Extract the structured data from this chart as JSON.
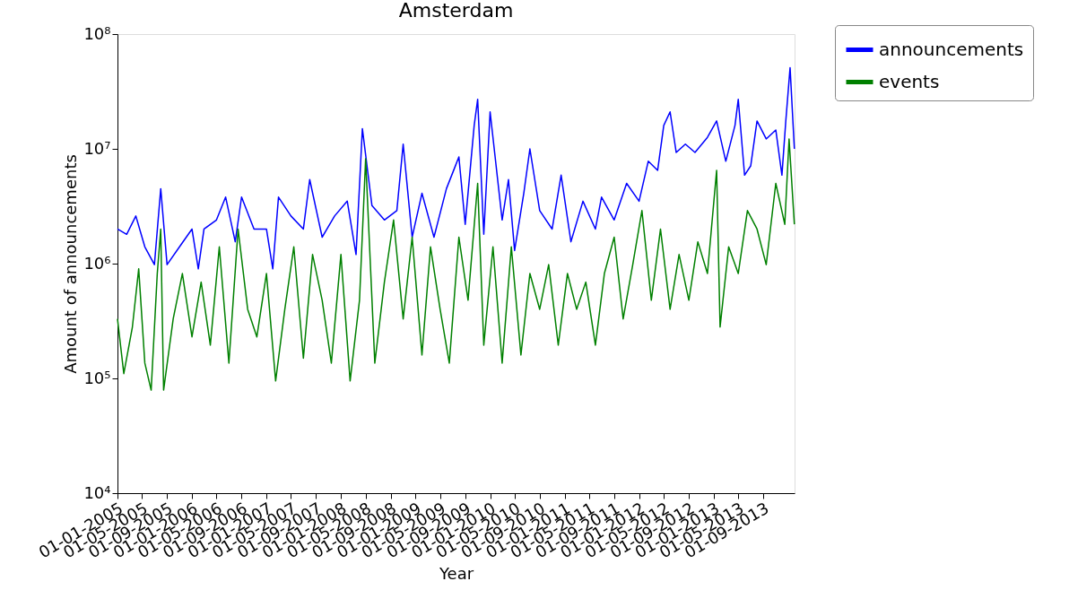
{
  "chart_data": {
    "type": "line",
    "title": "Amsterdam",
    "xlabel": "Year",
    "ylabel": "Amount of announcements",
    "log": "y",
    "grid": false,
    "legend": "top right",
    "marker": "none",
    "line_style": "solid",
    "xlim": [
      "2005-01-01",
      "2014-02-01"
    ],
    "xticks": [
      {
        "value": "2005-01-01",
        "label": "01-01-2005"
      },
      {
        "value": "2005-05-01",
        "label": "01-05-2005"
      },
      {
        "value": "2005-09-01",
        "label": "01-09-2005"
      },
      {
        "value": "2006-01-01",
        "label": "01-01-2006"
      },
      {
        "value": "2006-05-01",
        "label": "01-05-2006"
      },
      {
        "value": "2006-09-01",
        "label": "01-09-2006"
      },
      {
        "value": "2007-01-01",
        "label": "01-01-2007"
      },
      {
        "value": "2007-05-01",
        "label": "01-05-2007"
      },
      {
        "value": "2007-09-01",
        "label": "01-09-2007"
      },
      {
        "value": "2008-01-01",
        "label": "01-01-2008"
      },
      {
        "value": "2008-05-01",
        "label": "01-05-2008"
      },
      {
        "value": "2008-09-01",
        "label": "01-09-2008"
      },
      {
        "value": "2009-01-01",
        "label": "01-01-2009"
      },
      {
        "value": "2009-05-01",
        "label": "01-05-2009"
      },
      {
        "value": "2009-09-01",
        "label": "01-09-2009"
      },
      {
        "value": "2010-01-01",
        "label": "01-01-2010"
      },
      {
        "value": "2010-05-01",
        "label": "01-05-2010"
      },
      {
        "value": "2010-09-01",
        "label": "01-09-2010"
      },
      {
        "value": "2011-01-01",
        "label": "01-01-2011"
      },
      {
        "value": "2011-05-01",
        "label": "01-05-2011"
      },
      {
        "value": "2011-09-01",
        "label": "01-09-2011"
      },
      {
        "value": "2012-01-01",
        "label": "01-01-2012"
      },
      {
        "value": "2012-05-01",
        "label": "01-05-2012"
      },
      {
        "value": "2012-09-01",
        "label": "01-09-2012"
      },
      {
        "value": "2013-01-01",
        "label": "01-01-2013"
      },
      {
        "value": "2013-05-01",
        "label": "01-05-2013"
      },
      {
        "value": "2013-09-01",
        "label": "01-09-2013"
      }
    ],
    "ylim": [
      10000,
      100000000
    ],
    "yticks": [
      {
        "value": 10000,
        "label": "10⁴"
      },
      {
        "value": 100000,
        "label": "10⁵"
      },
      {
        "value": 1000000,
        "label": "10⁶"
      },
      {
        "value": 10000000,
        "label": "10⁷"
      },
      {
        "value": 100000000,
        "label": "10⁸"
      }
    ],
    "series": [
      {
        "name": "announcements",
        "color": "#0000ff",
        "x": [
          "2005-01-01",
          "2005-02-15",
          "2005-04-01",
          "2005-05-15",
          "2005-07-01",
          "2005-08-01",
          "2005-09-01",
          "2005-11-01",
          "2006-01-01",
          "2006-02-01",
          "2006-03-01",
          "2006-05-01",
          "2006-06-15",
          "2006-08-01",
          "2006-09-01",
          "2006-11-01",
          "2007-01-01",
          "2007-02-01",
          "2007-03-01",
          "2007-05-01",
          "2007-07-01",
          "2007-08-01",
          "2007-10-01",
          "2007-12-01",
          "2008-02-01",
          "2008-03-15",
          "2008-04-15",
          "2008-06-01",
          "2008-08-01",
          "2008-10-01",
          "2008-11-01",
          "2008-12-15",
          "2009-02-01",
          "2009-04-01",
          "2009-06-01",
          "2009-08-01",
          "2009-09-01",
          "2009-10-15",
          "2009-11-01",
          "2009-12-01",
          "2010-01-01",
          "2010-03-01",
          "2010-04-01",
          "2010-05-01",
          "2010-06-15",
          "2010-07-15",
          "2010-09-01",
          "2010-11-01",
          "2010-12-15",
          "2011-02-01",
          "2011-04-01",
          "2011-06-01",
          "2011-07-01",
          "2011-09-01",
          "2011-11-01",
          "2012-01-01",
          "2012-02-15",
          "2012-04-01",
          "2012-05-01",
          "2012-06-01",
          "2012-07-01",
          "2012-08-15",
          "2012-10-01",
          "2012-12-01",
          "2013-01-15",
          "2013-03-01",
          "2013-04-15",
          "2013-05-01",
          "2013-06-01",
          "2013-07-01",
          "2013-08-01",
          "2013-09-15",
          "2013-11-01",
          "2013-12-01",
          "2013-12-20",
          "2014-01-10",
          "2014-01-31"
        ],
        "values": [
          2000000.0,
          1800000.0,
          2600000.0,
          1400000.0,
          980000.0,
          4500000.0,
          980000.0,
          1400000.0,
          2000000.0,
          900000.0,
          2000000.0,
          2400000.0,
          3800000.0,
          1550000.0,
          3800000.0,
          2000000.0,
          2000000.0,
          900000.0,
          3800000.0,
          2600000.0,
          2000000.0,
          5400000.0,
          1700000.0,
          2600000.0,
          3500000.0,
          1200000.0,
          15000000.0,
          3200000.0,
          2400000.0,
          2900000.0,
          11000000.0,
          1700000.0,
          4100000.0,
          1700000.0,
          4500000.0,
          8500000.0,
          2200000.0,
          16000000.0,
          27000000.0,
          1800000.0,
          21000000.0,
          2400000.0,
          5400000.0,
          1300000.0,
          4100000.0,
          10000000.0,
          2900000.0,
          2000000.0,
          5900000.0,
          1550000.0,
          3500000.0,
          2000000.0,
          3800000.0,
          2400000.0,
          5000000.0,
          3500000.0,
          7800000.0,
          6500000.0,
          16000000.0,
          21000000.0,
          9300000.0,
          11000000.0,
          9300000.0,
          12600000.0,
          17500000.0,
          7800000.0,
          16000000.0,
          27000000.0,
          5900000.0,
          7100000.0,
          17500000.0,
          12200000.0,
          14600000.0,
          5900000.0,
          17500000.0,
          51000000.0,
          10000000.0
        ]
      },
      {
        "name": "events",
        "color": "#008000",
        "x": [
          "2005-01-01",
          "2005-02-01",
          "2005-03-15",
          "2005-04-15",
          "2005-05-15",
          "2005-06-15",
          "2005-07-15",
          "2005-08-01",
          "2005-08-15",
          "2005-10-01",
          "2005-11-15",
          "2006-01-01",
          "2006-02-15",
          "2006-04-01",
          "2006-05-15",
          "2006-07-01",
          "2006-08-15",
          "2006-10-01",
          "2006-11-15",
          "2007-01-01",
          "2007-02-15",
          "2007-04-01",
          "2007-05-15",
          "2007-07-01",
          "2007-08-15",
          "2007-10-01",
          "2007-11-15",
          "2008-01-01",
          "2008-02-15",
          "2008-04-01",
          "2008-05-01",
          "2008-06-15",
          "2008-08-01",
          "2008-09-15",
          "2008-11-01",
          "2008-12-15",
          "2009-02-01",
          "2009-03-15",
          "2009-05-01",
          "2009-06-15",
          "2009-08-01",
          "2009-09-15",
          "2009-11-01",
          "2009-12-01",
          "2010-01-15",
          "2010-03-01",
          "2010-04-15",
          "2010-06-01",
          "2010-07-15",
          "2010-09-01",
          "2010-10-15",
          "2010-12-01",
          "2011-01-15",
          "2011-03-01",
          "2011-04-15",
          "2011-06-01",
          "2011-07-15",
          "2011-09-01",
          "2011-10-15",
          "2011-12-01",
          "2012-01-15",
          "2012-03-01",
          "2012-04-15",
          "2012-06-01",
          "2012-07-15",
          "2012-09-01",
          "2012-10-15",
          "2012-12-01",
          "2013-01-15",
          "2013-02-01",
          "2013-03-15",
          "2013-05-01",
          "2013-06-15",
          "2013-08-01",
          "2013-09-15",
          "2013-11-01",
          "2013-12-15",
          "2014-01-05",
          "2014-01-31"
        ],
        "values": [
          330000.0,
          110000.0,
          280000.0,
          900000.0,
          136000.0,
          79000.0,
          820000.0,
          2000000.0,
          79000.0,
          330000.0,
          820000.0,
          230000.0,
          690000.0,
          195000.0,
          1400000.0,
          136000.0,
          2000000.0,
          400000.0,
          230000.0,
          820000.0,
          95000.0,
          400000.0,
          1400000.0,
          150000.0,
          1200000.0,
          480000.0,
          136000.0,
          1200000.0,
          95000.0,
          480000.0,
          8200000.0,
          136000.0,
          690000.0,
          2400000.0,
          330000.0,
          1700000.0,
          160000.0,
          1400000.0,
          400000.0,
          136000.0,
          1700000.0,
          480000.0,
          5000000.0,
          195000.0,
          1400000.0,
          136000.0,
          1400000.0,
          160000.0,
          820000.0,
          400000.0,
          980000.0,
          195000.0,
          820000.0,
          400000.0,
          690000.0,
          195000.0,
          820000.0,
          1700000.0,
          330000.0,
          980000.0,
          2900000.0,
          480000.0,
          2000000.0,
          400000.0,
          1200000.0,
          480000.0,
          1550000.0,
          820000.0,
          6500000.0,
          280000.0,
          1400000.0,
          820000.0,
          2900000.0,
          2000000.0,
          980000.0,
          5000000.0,
          2200000.0,
          12200000.0,
          2200000.0
        ]
      }
    ]
  }
}
